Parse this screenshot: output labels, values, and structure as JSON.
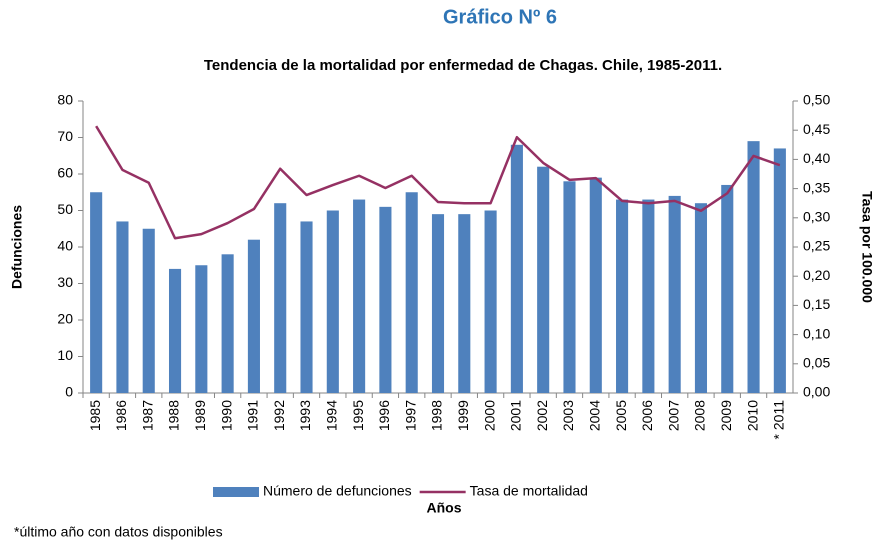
{
  "chart_data": {
    "type": "bar_line",
    "heading": "Gráfico Nº 6",
    "title": "Tendencia de la mortalidad por enfermedad de Chagas. Chile, 1985-2011.",
    "x_label": "Años",
    "y_label": "Defunciones",
    "y2_label": "Tasa por 100.000",
    "footnote": "*último año con datos disponibles",
    "categories": [
      "1985",
      "1986",
      "1987",
      "1988",
      "1989",
      "1990",
      "1991",
      "1992",
      "1993",
      "1994",
      "1995",
      "1996",
      "1997",
      "1998",
      "1999",
      "2000",
      "2001",
      "2002",
      "2003",
      "2004",
      "2005",
      "2006",
      "2007",
      "2008",
      "2009",
      "2010",
      "* 2011"
    ],
    "series": [
      {
        "name": "Número de defunciones",
        "type": "bar",
        "color": "#4f81bd",
        "values": [
          55,
          47,
          45,
          34,
          35,
          38,
          42,
          52,
          47,
          50,
          53,
          51,
          55,
          49,
          49,
          50,
          68,
          62,
          58,
          59,
          53,
          53,
          54,
          52,
          57,
          69,
          67
        ]
      },
      {
        "name": "Tasa de mortalidad",
        "type": "line",
        "axis": "y2",
        "color": "#953163",
        "values": [
          0.457,
          0.382,
          0.36,
          0.265,
          0.272,
          0.291,
          0.315,
          0.384,
          0.339,
          0.356,
          0.372,
          0.351,
          0.372,
          0.327,
          0.325,
          0.325,
          0.438,
          0.394,
          0.365,
          0.368,
          0.329,
          0.325,
          0.329,
          0.312,
          0.342,
          0.406,
          0.39
        ]
      }
    ],
    "ylim": [
      0,
      80
    ],
    "yticks": [
      0,
      10,
      20,
      30,
      40,
      50,
      60,
      70,
      80
    ],
    "y2lim": [
      0,
      0.5
    ],
    "y2ticks": [
      {
        "value": 0,
        "label": "0,00"
      },
      {
        "value": 0.05,
        "label": "0,05"
      },
      {
        "value": 0.1,
        "label": "0,10"
      },
      {
        "value": 0.15,
        "label": "0,15"
      },
      {
        "value": 0.2,
        "label": "0,20"
      },
      {
        "value": 0.25,
        "label": "0,25"
      },
      {
        "value": 0.3,
        "label": "0,30"
      },
      {
        "value": 0.35,
        "label": "0,35"
      },
      {
        "value": 0.4,
        "label": "0,40"
      },
      {
        "value": 0.45,
        "label": "0,45"
      },
      {
        "value": 0.5,
        "label": "0,50"
      }
    ],
    "grid": false,
    "legend": "bottom"
  }
}
